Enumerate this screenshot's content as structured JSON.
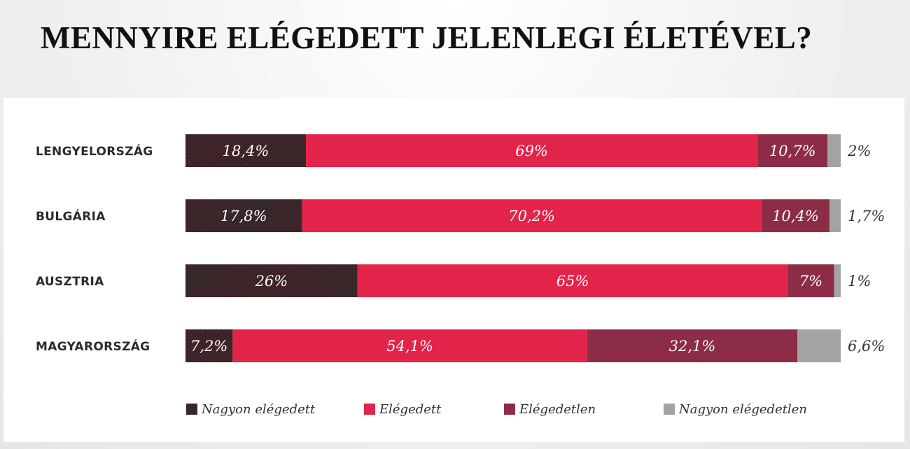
{
  "chart_data": {
    "type": "bar",
    "orientation": "horizontal",
    "stacked": true,
    "title": "MENNYIRE ELÉGEDETT JELENLEGI ÉLETÉVEL?",
    "categories": [
      "LENGYELORSZÁG",
      "BULGÁRIA",
      "AUSZTRIA",
      "MAGYARORSZÁG"
    ],
    "series": [
      {
        "name": "Nagyon elégedett",
        "color": "#3a2a2e",
        "pattern": "hatched",
        "values": [
          18.4,
          17.8,
          26,
          7.2
        ],
        "labels": [
          "18,4%",
          "17,8%",
          "26%",
          "7,2%"
        ]
      },
      {
        "name": "Elégedett",
        "color": "#e3244a",
        "values": [
          69,
          70.2,
          65,
          54.1
        ],
        "labels": [
          "69%",
          "70,2%",
          "65%",
          "54,1%"
        ]
      },
      {
        "name": "Elégedetlen",
        "color": "#8c2c46",
        "values": [
          10.7,
          10.4,
          7,
          32.1
        ],
        "labels": [
          "10,7%",
          "10,4%",
          "7%",
          "32,1%"
        ]
      },
      {
        "name": "Nagyon elégedetlen",
        "color": "#a3a3a3",
        "values": [
          2,
          1.7,
          1,
          6.6
        ],
        "labels": [
          "2%",
          "1,7%",
          "1%",
          "6,6%"
        ]
      }
    ],
    "xlim": [
      0,
      100
    ],
    "grid": false,
    "legend": "bottom"
  }
}
